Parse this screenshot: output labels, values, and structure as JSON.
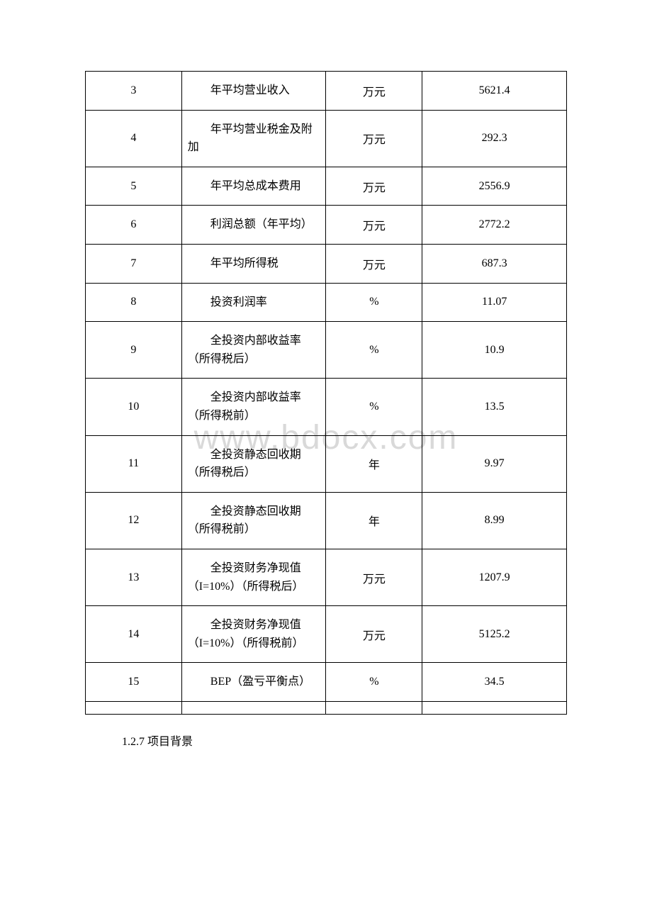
{
  "table": {
    "columns": {
      "num_width": "20%",
      "desc_width": "30%",
      "unit_width": "20%",
      "val_width": "30%"
    },
    "border_color": "#000000",
    "background_color": "#ffffff",
    "text_color": "#000000",
    "font_size": 16,
    "rows": [
      {
        "num": "3",
        "desc": "年平均营业收入",
        "unit": "万元",
        "val": "5621.4"
      },
      {
        "num": "4",
        "desc": "年平均营业税金及附加",
        "unit": "万元",
        "val": "292.3"
      },
      {
        "num": "5",
        "desc": "年平均总成本费用",
        "unit": "万元",
        "val": "2556.9"
      },
      {
        "num": "6",
        "desc": "利润总额（年平均）",
        "unit": "万元",
        "val": "2772.2"
      },
      {
        "num": "7",
        "desc": "年平均所得税",
        "unit": "万元",
        "val": "687.3"
      },
      {
        "num": "8",
        "desc": "投资利润率",
        "unit": "%",
        "val": "11.07"
      },
      {
        "num": "9",
        "desc": "全投资内部收益率（所得税后）",
        "unit": "%",
        "val": "10.9"
      },
      {
        "num": "10",
        "desc": "全投资内部收益率（所得税前）",
        "unit": "%",
        "val": "13.5"
      },
      {
        "num": "11",
        "desc": "全投资静态回收期（所得税后）",
        "unit": "年",
        "val": "9.97"
      },
      {
        "num": "12",
        "desc": "全投资静态回收期（所得税前）",
        "unit": "年",
        "val": "8.99"
      },
      {
        "num": "13",
        "desc": "全投资财务净现值（I=10%）（所得税后）",
        "unit": "万元",
        "val": "1207.9"
      },
      {
        "num": "14",
        "desc": "全投资财务净现值（I=10%）（所得税前）",
        "unit": "万元",
        "val": "5125.2"
      },
      {
        "num": "15",
        "desc": "BEP（盈亏平衡点）",
        "unit": "%",
        "val": "34.5"
      }
    ]
  },
  "section_title": "1.2.7 项目背景",
  "watermark": {
    "text": "www.bdocx.com",
    "color": "#d9d9d9",
    "font_size": 48
  }
}
